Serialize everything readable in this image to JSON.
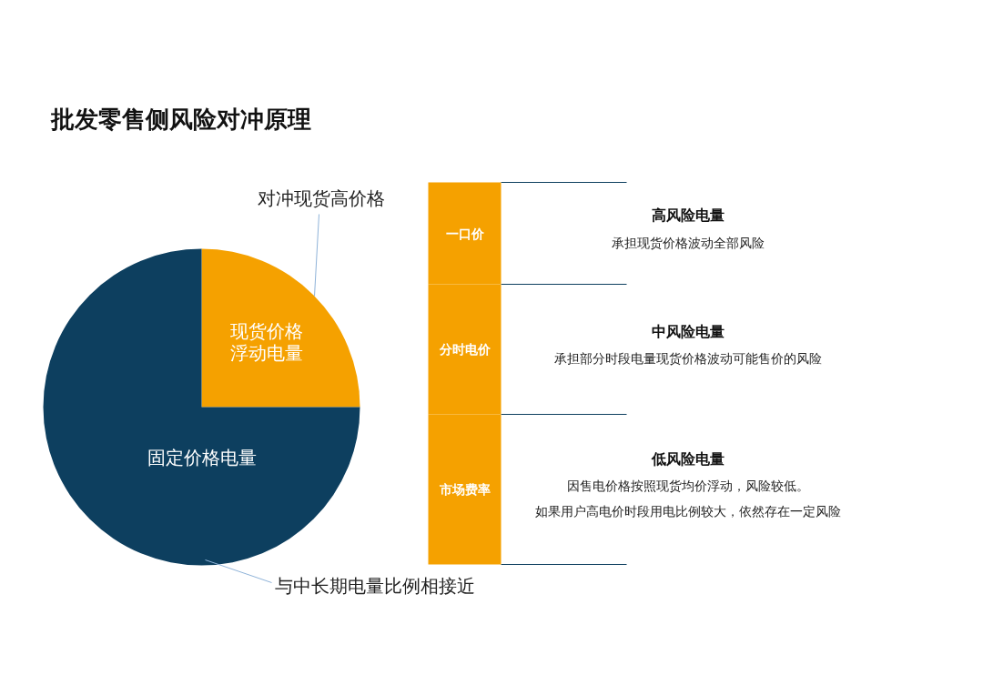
{
  "chart_data": [
    {
      "type": "pie",
      "title": "批发零售侧风险对冲原理",
      "categories": [
        "现货价格浮动电量",
        "固定价格电量"
      ],
      "values": [
        25,
        75
      ],
      "colors": [
        "#f5a100",
        "#0d3f5f"
      ],
      "annotations": [
        "对冲现货高价格",
        "与中长期电量比例相接近"
      ]
    },
    {
      "type": "other",
      "categories": [
        "一口价",
        "分时电价",
        "市场费率"
      ],
      "colors": [
        "#f5a100",
        "#f5a100",
        "#f5a100"
      ],
      "annotations": [
        "高风险电量",
        "承担现货价格波动全部风险",
        "中风险电量",
        "承担部分时段电量现货价格波动可能售价的风险",
        "低风险电量",
        "因售电价格按照现货均价浮动，风险较低。",
        "如果用户高电价时段用电比例较大，依然存在一定风险"
      ]
    }
  ]
}
